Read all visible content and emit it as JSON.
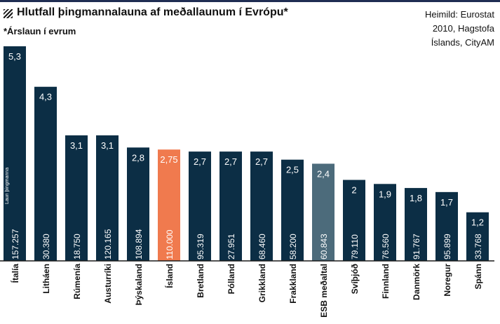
{
  "header": {
    "title": "Hlutfall þingmannalauna af meðallaunum í Evrópu*",
    "subtitle": "*Árslaun í evrum",
    "source_lines": [
      "Heimild: Eurostat",
      "2010, Hagstofa",
      "Íslands, CityAM"
    ]
  },
  "chart_data": {
    "type": "bar",
    "title": "Hlutfall þingmannalauna af meðallaunum í Evrópu*",
    "subtitle": "*Árslaun í evrum",
    "categories": [
      "Ítalía",
      "Litháen",
      "Rúmenía",
      "Austurríki",
      "Þýskaland",
      "Ísland",
      "Bretland",
      "Pólland",
      "Grikkland",
      "Frakkland",
      "ESB meðaltal",
      "Svíþjóð",
      "Finnland",
      "Danmörk",
      "Noregur",
      "Spánn"
    ],
    "values": [
      5.3,
      4.3,
      3.1,
      3.1,
      2.8,
      2.75,
      2.7,
      2.7,
      2.7,
      2.5,
      2.4,
      2.0,
      1.9,
      1.8,
      1.7,
      1.2
    ],
    "value_labels": [
      "5,3",
      "4,3",
      "3,1",
      "3,1",
      "2,8",
      "2,75",
      "2,7",
      "2,7",
      "2,7",
      "2,5",
      "2,4",
      "2",
      "1,9",
      "1,8",
      "1,7",
      "1,2"
    ],
    "salaries": [
      "157.257",
      "30.380",
      "18.750",
      "120.165",
      "108.894",
      "110.000",
      "95.319",
      "27.951",
      "68.460",
      "58.200",
      "60.843",
      "79.110",
      "76.560",
      "91.767",
      "95.899",
      "33.768"
    ],
    "salary_note": "Laun þingmanna",
    "ylim": [
      0,
      5.3
    ],
    "xlabel": "",
    "ylabel": "",
    "grid": false,
    "legend": "none",
    "colors": {
      "default": "#0c2e45",
      "highlight_iceland": "#f07a4e",
      "highlight_eu_average": "#4c6b7b",
      "axis": "#1a1a1a"
    },
    "highlight": {
      "Ísland": "highlight_iceland",
      "ESB meðaltal": "highlight_eu_average"
    }
  }
}
